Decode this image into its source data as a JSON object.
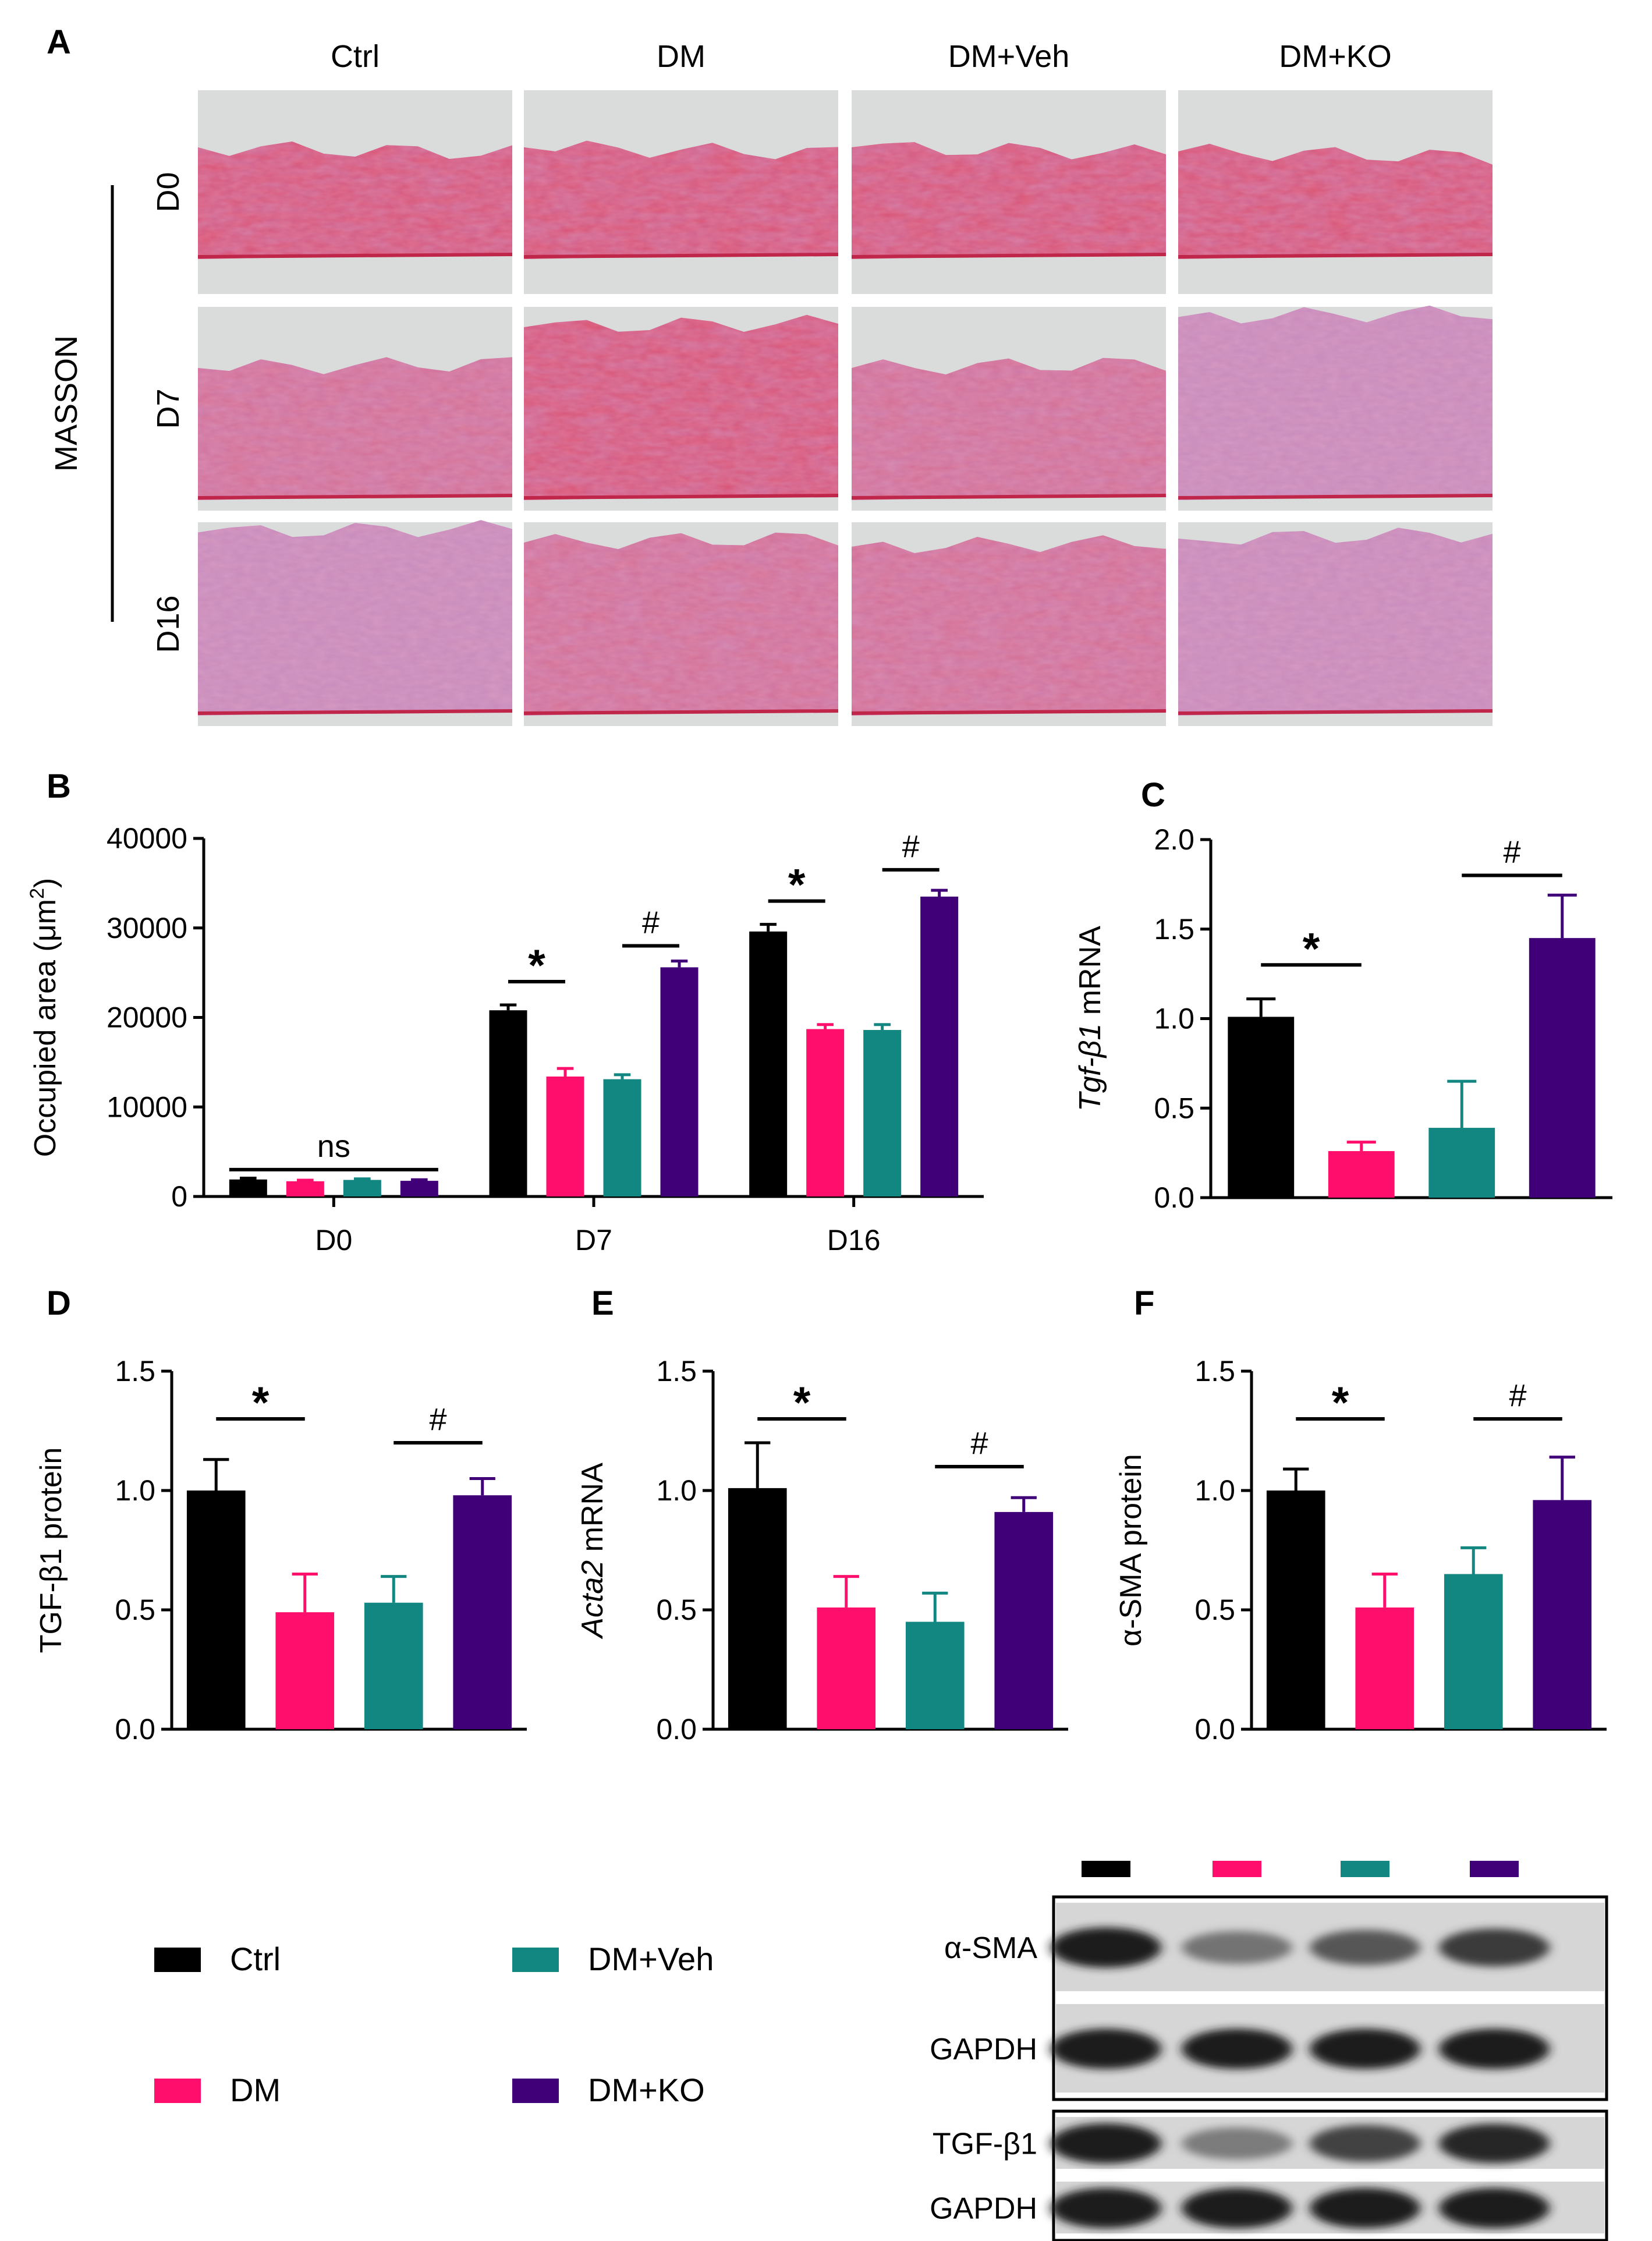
{
  "colors": {
    "Ctrl": "#000000",
    "DM": "#ff0f6b",
    "DM+Veh": "#128680",
    "DM+KO": "#400078"
  },
  "groups": [
    "Ctrl",
    "DM",
    "DM+Veh",
    "DM+KO"
  ],
  "panelA": {
    "letter": "A",
    "stain_label": "MASSON",
    "columns": [
      "Ctrl",
      "DM",
      "DM+Veh",
      "DM+KO"
    ],
    "rows": [
      "D0",
      "D7",
      "D16"
    ]
  },
  "chart_data": [
    {
      "id": "B",
      "letter": "B",
      "type": "bar",
      "title": "",
      "ylabel": "Occupied area (μm²)",
      "ylabel_main": "Occupied area (μm",
      "ylabel_sup": "2",
      "ylabel_end": ")",
      "xlabel": "",
      "categories": [
        "D0",
        "D7",
        "D16"
      ],
      "series": [
        {
          "name": "Ctrl",
          "values": [
            1900,
            20800,
            29600
          ],
          "errors": [
            150,
            600,
            800
          ]
        },
        {
          "name": "DM",
          "values": [
            1700,
            13400,
            18700
          ],
          "errors": [
            120,
            900,
            500
          ]
        },
        {
          "name": "DM+Veh",
          "values": [
            1850,
            13100,
            18600
          ],
          "errors": [
            120,
            500,
            600
          ]
        },
        {
          "name": "DM+KO",
          "values": [
            1750,
            25600,
            33500
          ],
          "errors": [
            120,
            700,
            700
          ]
        }
      ],
      "ylim": [
        0,
        40000
      ],
      "yticks": [
        "0",
        "10000",
        "20000",
        "30000",
        "40000"
      ],
      "annotations": [
        {
          "label": "ns",
          "category": 0,
          "from": 0,
          "to": 3,
          "y": 3000
        },
        {
          "label": "*",
          "category": 1,
          "from": 0,
          "to": 1,
          "y": 24000
        },
        {
          "label": "#",
          "category": 1,
          "from": 2,
          "to": 3,
          "y": 28000
        },
        {
          "label": "*",
          "category": 2,
          "from": 0,
          "to": 1,
          "y": 33000
        },
        {
          "label": "#",
          "category": 2,
          "from": 2,
          "to": 3,
          "y": 36500
        }
      ]
    },
    {
      "id": "C",
      "letter": "C",
      "type": "bar",
      "title": "",
      "ylabel": "Tgf-β1 mRNA",
      "ylabel_gene": "Tgf-β1",
      "ylabel_rest": " mRNA",
      "xlabel": "",
      "categories": [
        "Ctrl",
        "DM",
        "DM+Veh",
        "DM+KO"
      ],
      "values": [
        1.01,
        0.26,
        0.39,
        1.45
      ],
      "errors": [
        0.1,
        0.05,
        0.26,
        0.24
      ],
      "ylim": [
        0,
        2.0
      ],
      "yticks": [
        "0.0",
        "0.5",
        "1.0",
        "1.5",
        "2.0"
      ],
      "annotations": [
        {
          "label": "*",
          "from": 0,
          "to": 1,
          "y": 1.3
        },
        {
          "label": "#",
          "from": 2,
          "to": 3,
          "y": 1.8
        }
      ]
    },
    {
      "id": "D",
      "letter": "D",
      "type": "bar",
      "title": "",
      "ylabel": "TGF-β1 protein",
      "xlabel": "",
      "categories": [
        "Ctrl",
        "DM",
        "DM+Veh",
        "DM+KO"
      ],
      "values": [
        1.0,
        0.49,
        0.53,
        0.98
      ],
      "errors": [
        0.13,
        0.16,
        0.11,
        0.07
      ],
      "ylim": [
        0,
        1.5
      ],
      "yticks": [
        "0.0",
        "0.5",
        "1.0",
        "1.5"
      ],
      "annotations": [
        {
          "label": "*",
          "from": 0,
          "to": 1,
          "y": 1.3
        },
        {
          "label": "#",
          "from": 2,
          "to": 3,
          "y": 1.2
        }
      ]
    },
    {
      "id": "E",
      "letter": "E",
      "type": "bar",
      "title": "",
      "ylabel": "Acta2 mRNA",
      "ylabel_gene": "Acta2",
      "ylabel_rest": " mRNA",
      "xlabel": "",
      "categories": [
        "Ctrl",
        "DM",
        "DM+Veh",
        "DM+KO"
      ],
      "values": [
        1.01,
        0.51,
        0.45,
        0.91
      ],
      "errors": [
        0.19,
        0.13,
        0.12,
        0.06
      ],
      "ylim": [
        0,
        1.5
      ],
      "yticks": [
        "0.0",
        "0.5",
        "1.0",
        "1.5"
      ],
      "annotations": [
        {
          "label": "*",
          "from": 0,
          "to": 1,
          "y": 1.3
        },
        {
          "label": "#",
          "from": 2,
          "to": 3,
          "y": 1.1
        }
      ]
    },
    {
      "id": "F",
      "letter": "F",
      "type": "bar",
      "title": "",
      "ylabel": "α-SMA protein",
      "xlabel": "",
      "categories": [
        "Ctrl",
        "DM",
        "DM+Veh",
        "DM+KO"
      ],
      "values": [
        1.0,
        0.51,
        0.65,
        0.96
      ],
      "errors": [
        0.09,
        0.14,
        0.11,
        0.18
      ],
      "ylim": [
        0,
        1.5
      ],
      "yticks": [
        "0.0",
        "0.5",
        "1.0",
        "1.5"
      ],
      "annotations": [
        {
          "label": "*",
          "from": 0,
          "to": 1,
          "y": 1.3
        },
        {
          "label": "#",
          "from": 2,
          "to": 3,
          "y": 1.3
        }
      ]
    }
  ],
  "legend": {
    "items": [
      {
        "label": "Ctrl",
        "group": "Ctrl"
      },
      {
        "label": "DM+Veh",
        "group": "DM+Veh"
      },
      {
        "label": "DM",
        "group": "DM"
      },
      {
        "label": "DM+KO",
        "group": "DM+KO"
      }
    ]
  },
  "western_blot": {
    "top_block": [
      "α-SMA",
      "GAPDH"
    ],
    "bottom_block": [
      "TGF-β1",
      "GAPDH"
    ],
    "band_intensity": {
      "α-SMA": [
        0.9,
        0.45,
        0.6,
        0.75
      ],
      "GAPDH_top": [
        0.9,
        0.9,
        0.9,
        0.9
      ],
      "TGF-β1": [
        0.9,
        0.4,
        0.7,
        0.85
      ],
      "GAPDH_bottom": [
        0.9,
        0.9,
        0.9,
        0.9
      ]
    }
  }
}
